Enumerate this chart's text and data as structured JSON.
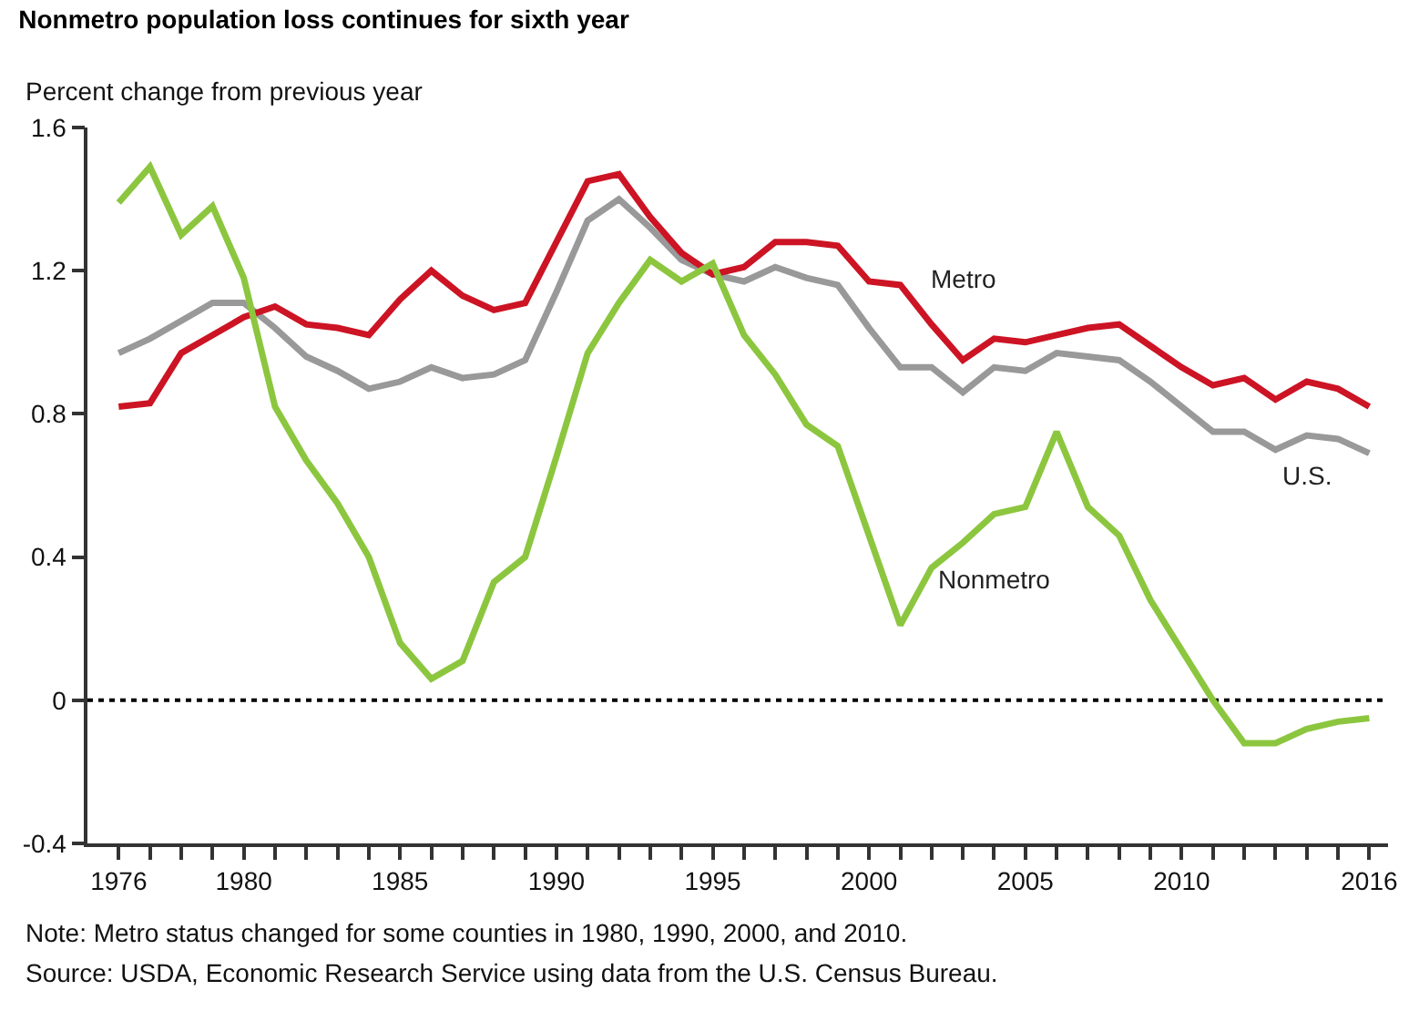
{
  "chart_data": {
    "type": "line",
    "title": "Nonmetro population loss continues for sixth year",
    "ylabel": "Percent change from previous year",
    "x": [
      1976,
      1977,
      1978,
      1979,
      1980,
      1981,
      1982,
      1983,
      1984,
      1985,
      1986,
      1987,
      1988,
      1989,
      1990,
      1991,
      1992,
      1993,
      1994,
      1995,
      1996,
      1997,
      1998,
      1999,
      2000,
      2001,
      2002,
      2003,
      2004,
      2005,
      2006,
      2007,
      2008,
      2009,
      2010,
      2011,
      2012,
      2013,
      2014,
      2015,
      2016
    ],
    "series": [
      {
        "name": "U.S.",
        "color": "#999999",
        "values": [
          0.97,
          1.01,
          1.06,
          1.11,
          1.11,
          1.04,
          0.96,
          0.92,
          0.87,
          0.89,
          0.93,
          0.9,
          0.91,
          0.95,
          1.14,
          1.34,
          1.4,
          1.32,
          1.23,
          1.19,
          1.17,
          1.21,
          1.18,
          1.16,
          1.04,
          0.93,
          0.93,
          0.86,
          0.93,
          0.92,
          0.97,
          0.96,
          0.95,
          0.89,
          0.82,
          0.75,
          0.75,
          0.7,
          0.74,
          0.73,
          0.69
        ]
      },
      {
        "name": "Metro",
        "color": "#cc1424",
        "values": [
          0.82,
          0.83,
          0.97,
          1.02,
          1.07,
          1.1,
          1.05,
          1.04,
          1.02,
          1.12,
          1.2,
          1.13,
          1.09,
          1.11,
          1.28,
          1.45,
          1.47,
          1.35,
          1.25,
          1.19,
          1.21,
          1.28,
          1.28,
          1.27,
          1.17,
          1.16,
          1.05,
          0.95,
          1.01,
          1.0,
          1.02,
          1.04,
          1.05,
          0.99,
          0.93,
          0.88,
          0.9,
          0.84,
          0.89,
          0.87,
          0.82
        ]
      },
      {
        "name": "Nonmetro",
        "color": "#8cc63f",
        "values": [
          1.39,
          1.49,
          1.3,
          1.38,
          1.18,
          0.82,
          0.67,
          0.55,
          0.4,
          0.16,
          0.06,
          0.11,
          0.33,
          0.4,
          0.68,
          0.97,
          1.11,
          1.23,
          1.17,
          1.22,
          1.02,
          0.91,
          0.77,
          0.71,
          0.46,
          0.21,
          0.37,
          0.44,
          0.52,
          0.54,
          0.75,
          0.54,
          0.46,
          0.28,
          0.14,
          0.0,
          -0.12,
          -0.12,
          -0.08,
          -0.06,
          -0.05
        ]
      }
    ],
    "xlim": [
      1975,
      2016.6
    ],
    "xticks": [
      1976,
      {
        "value": 1977,
        "label": null
      },
      {
        "value": 1978,
        "label": null
      },
      {
        "value": 1979,
        "label": null
      },
      1980,
      {
        "value": 1981,
        "label": null
      },
      {
        "value": 1982,
        "label": null
      },
      {
        "value": 1983,
        "label": null
      },
      {
        "value": 1984,
        "label": null
      },
      1985,
      {
        "value": 1986,
        "label": null
      },
      {
        "value": 1987,
        "label": null
      },
      {
        "value": 1988,
        "label": null
      },
      {
        "value": 1989,
        "label": null
      },
      1990,
      {
        "value": 1991,
        "label": null
      },
      {
        "value": 1992,
        "label": null
      },
      {
        "value": 1993,
        "label": null
      },
      {
        "value": 1994,
        "label": null
      },
      1995,
      {
        "value": 1996,
        "label": null
      },
      {
        "value": 1997,
        "label": null
      },
      {
        "value": 1998,
        "label": null
      },
      {
        "value": 1999,
        "label": null
      },
      2000,
      {
        "value": 2001,
        "label": null
      },
      {
        "value": 2002,
        "label": null
      },
      {
        "value": 2003,
        "label": null
      },
      {
        "value": 2004,
        "label": null
      },
      2005,
      {
        "value": 2006,
        "label": null
      },
      {
        "value": 2007,
        "label": null
      },
      {
        "value": 2008,
        "label": null
      },
      {
        "value": 2009,
        "label": null
      },
      2010,
      {
        "value": 2011,
        "label": null
      },
      {
        "value": 2012,
        "label": null
      },
      {
        "value": 2013,
        "label": null
      },
      {
        "value": 2014,
        "label": null
      },
      {
        "value": 2015,
        "label": null
      },
      2016
    ],
    "ylim": [
      -0.4,
      1.6
    ],
    "yticks": [
      -0.4,
      0,
      0.4,
      0.8,
      1.2,
      1.6
    ],
    "ref_lines": [
      {
        "axis": "y",
        "value": 0,
        "color": "#000000",
        "line_style": "dotted"
      }
    ],
    "grid": false,
    "legend": false,
    "marker": "none",
    "line_style": "solid",
    "annotations": [
      "Note: Metro status changed for some counties in 1980, 1990, 2000, and 2010.",
      "Source: USDA, Economic Research Service using data from the U.S. Census Bureau."
    ]
  }
}
